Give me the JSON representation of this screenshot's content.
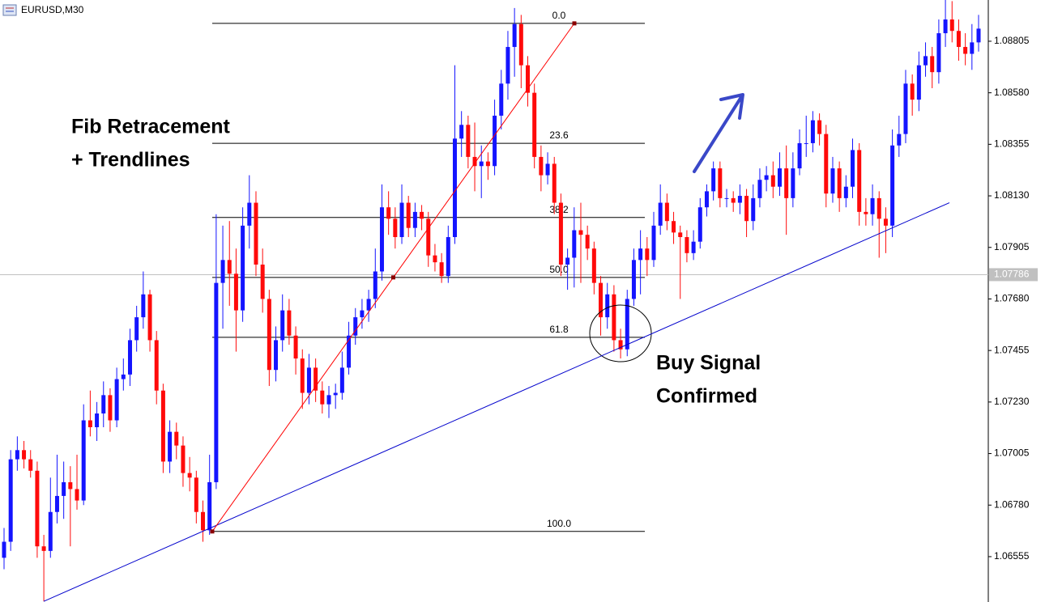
{
  "chart_data": {
    "type": "candlestick",
    "title": "EURUSD,M30",
    "up_color": "#1414ff",
    "down_color": "#ff0a0a",
    "ylim": [
      1.06357,
      1.08985
    ],
    "yticks": [
      1.08805,
      {
        "value": 1.0858,
        "label": "1.08580"
      },
      1.08355,
      {
        "value": 1.0813,
        "label": "1.08130"
      },
      1.07905,
      {
        "value": 1.0768,
        "label": "1.07680"
      },
      1.07455,
      {
        "value": 1.0723,
        "label": "1.07230"
      },
      1.07005,
      {
        "value": 1.0678,
        "label": "1.06780"
      },
      1.06555
    ],
    "current_price": 1.07786,
    "fib": {
      "high": 1.08883,
      "low": 1.06665,
      "color": "#ff0000",
      "levels": [
        {
          "value": 0,
          "label": "0.0"
        },
        23.6,
        38.2,
        {
          "value": 50,
          "label": "50.0"
        },
        61.8,
        {
          "value": 100,
          "label": "100.0"
        }
      ]
    },
    "trendline": {
      "start": 1.0636,
      "end": 1.081,
      "color": "#0000cc"
    },
    "annotations": [
      "Fib Retracement",
      "+ Trendlines",
      "Buy Signal",
      "Confirmed"
    ],
    "ohlc": [
      [
        1.0655,
        1.0668,
        1.065,
        1.0662
      ],
      [
        1.0662,
        1.0702,
        1.0658,
        1.0698
      ],
      [
        1.0698,
        1.0708,
        1.0693,
        1.0702
      ],
      [
        1.0702,
        1.0706,
        1.0694,
        1.0698
      ],
      [
        1.0698,
        1.0702,
        1.069,
        1.0693
      ],
      [
        1.0693,
        1.0697,
        1.0655,
        1.066
      ],
      [
        1.066,
        1.0665,
        1.0636,
        1.0658
      ],
      [
        1.0658,
        1.069,
        1.0655,
        1.0675
      ],
      [
        1.0675,
        1.07,
        1.067,
        1.0682
      ],
      [
        1.0682,
        1.0697,
        1.0672,
        1.0688
      ],
      [
        1.0688,
        1.0695,
        1.066,
        1.0685
      ],
      [
        1.0685,
        1.07,
        1.0676,
        1.068
      ],
      [
        1.068,
        1.0722,
        1.0678,
        1.0715
      ],
      [
        1.0715,
        1.0728,
        1.0708,
        1.0712
      ],
      [
        1.0712,
        1.0723,
        1.0706,
        1.0718
      ],
      [
        1.0718,
        1.0732,
        1.0712,
        1.0726
      ],
      [
        1.0726,
        1.0729,
        1.071,
        1.0715
      ],
      [
        1.0715,
        1.0738,
        1.0712,
        1.0733
      ],
      [
        1.0733,
        1.0742,
        1.0728,
        1.0735
      ],
      [
        1.0735,
        1.0755,
        1.073,
        1.075
      ],
      [
        1.075,
        1.0765,
        1.0745,
        1.076
      ],
      [
        1.076,
        1.078,
        1.0755,
        1.077
      ],
      [
        1.077,
        1.0772,
        1.0745,
        1.075
      ],
      [
        1.075,
        1.0754,
        1.0722,
        1.0728
      ],
      [
        1.0728,
        1.0731,
        1.0692,
        1.0697
      ],
      [
        1.0697,
        1.0715,
        1.0692,
        1.071
      ],
      [
        1.071,
        1.0714,
        1.0698,
        1.0704
      ],
      [
        1.0704,
        1.0708,
        1.0686,
        1.0692
      ],
      [
        1.0692,
        1.0699,
        1.0684,
        1.069
      ],
      [
        1.069,
        1.0693,
        1.067,
        1.0675
      ],
      [
        1.0675,
        1.068,
        1.0662,
        1.0667
      ],
      [
        1.0667,
        1.07,
        1.0665,
        1.0688
      ],
      [
        1.0688,
        1.0805,
        1.0685,
        1.0775
      ],
      [
        1.0775,
        1.08,
        1.0755,
        1.0785
      ],
      [
        1.0785,
        1.0802,
        1.0765,
        1.0779
      ],
      [
        1.0779,
        1.079,
        1.0745,
        1.0763
      ],
      [
        1.0763,
        1.0808,
        1.0758,
        1.08
      ],
      [
        1.08,
        1.0822,
        1.079,
        1.081
      ],
      [
        1.081,
        1.0815,
        1.0778,
        1.0783
      ],
      [
        1.0783,
        1.079,
        1.0762,
        1.0768
      ],
      [
        1.0768,
        1.0772,
        1.073,
        1.0737
      ],
      [
        1.0737,
        1.0756,
        1.0732,
        1.075
      ],
      [
        1.075,
        1.077,
        1.0745,
        1.0763
      ],
      [
        1.0763,
        1.0768,
        1.0748,
        1.0752
      ],
      [
        1.0752,
        1.0756,
        1.0735,
        1.0742
      ],
      [
        1.0742,
        1.0746,
        1.072,
        1.0727
      ],
      [
        1.0727,
        1.0744,
        1.0722,
        1.0738
      ],
      [
        1.0738,
        1.0742,
        1.0723,
        1.0728
      ],
      [
        1.0728,
        1.0732,
        1.0718,
        1.0722
      ],
      [
        1.0722,
        1.073,
        1.0716,
        1.0726
      ],
      [
        1.0726,
        1.0731,
        1.072,
        1.0727
      ],
      [
        1.0727,
        1.0745,
        1.0724,
        1.0738
      ],
      [
        1.0738,
        1.0758,
        1.0735,
        1.0752
      ],
      [
        1.0752,
        1.0764,
        1.0748,
        1.076
      ],
      [
        1.076,
        1.0768,
        1.0755,
        1.0763
      ],
      [
        1.0763,
        1.0772,
        1.0758,
        1.0768
      ],
      [
        1.0768,
        1.079,
        1.0764,
        1.078
      ],
      [
        1.078,
        1.0818,
        1.0776,
        1.0808
      ],
      [
        1.0808,
        1.0815,
        1.0796,
        1.0803
      ],
      [
        1.0803,
        1.0808,
        1.079,
        1.0795
      ],
      [
        1.0795,
        1.0818,
        1.0792,
        1.081
      ],
      [
        1.081,
        1.0813,
        1.0795,
        1.0799
      ],
      [
        1.0799,
        1.081,
        1.0795,
        1.0806
      ],
      [
        1.0806,
        1.0809,
        1.0798,
        1.0803
      ],
      [
        1.0803,
        1.0806,
        1.0782,
        1.0787
      ],
      [
        1.0787,
        1.0792,
        1.078,
        1.0784
      ],
      [
        1.0784,
        1.0788,
        1.0775,
        1.0778
      ],
      [
        1.0778,
        1.08,
        1.0775,
        1.0795
      ],
      [
        1.0795,
        1.087,
        1.0792,
        1.0838
      ],
      [
        1.0838,
        1.085,
        1.083,
        1.0844
      ],
      [
        1.0844,
        1.0848,
        1.0825,
        1.083
      ],
      [
        1.083,
        1.0845,
        1.0815,
        1.0826
      ],
      [
        1.0826,
        1.0835,
        1.0812,
        1.0828
      ],
      [
        1.0828,
        1.0832,
        1.082,
        1.0826
      ],
      [
        1.0826,
        1.0855,
        1.0822,
        1.0848
      ],
      [
        1.0848,
        1.0868,
        1.0842,
        1.0862
      ],
      [
        1.0862,
        1.0885,
        1.0855,
        1.0878
      ],
      [
        1.0878,
        1.0895,
        1.0865,
        1.0888
      ],
      [
        1.0888,
        1.0892,
        1.086,
        1.087
      ],
      [
        1.087,
        1.0874,
        1.0852,
        1.0858
      ],
      [
        1.0858,
        1.0862,
        1.0825,
        1.083
      ],
      [
        1.083,
        1.0835,
        1.0815,
        1.0822
      ],
      [
        1.0822,
        1.0832,
        1.0818,
        1.0827
      ],
      [
        1.0827,
        1.083,
        1.0805,
        1.081
      ],
      [
        1.081,
        1.0814,
        1.0778,
        1.0783
      ],
      [
        1.0783,
        1.079,
        1.0772,
        1.0786
      ],
      [
        1.0786,
        1.0808,
        1.0773,
        1.0798
      ],
      [
        1.0798,
        1.081,
        1.0775,
        1.0796
      ],
      [
        1.0796,
        1.08,
        1.0785,
        1.079
      ],
      [
        1.079,
        1.0793,
        1.077,
        1.0775
      ],
      [
        1.0775,
        1.0778,
        1.0752,
        1.076
      ],
      [
        1.076,
        1.0775,
        1.0755,
        1.077
      ],
      [
        1.077,
        1.0774,
        1.0745,
        1.075
      ],
      [
        1.075,
        1.0755,
        1.0742,
        1.0746
      ],
      [
        1.0746,
        1.0772,
        1.0743,
        1.0768
      ],
      [
        1.0768,
        1.079,
        1.0765,
        1.0785
      ],
      [
        1.0785,
        1.0798,
        1.077,
        1.079
      ],
      [
        1.079,
        1.0795,
        1.0778,
        1.0785
      ],
      [
        1.0785,
        1.0806,
        1.0782,
        1.08
      ],
      [
        1.08,
        1.0818,
        1.0796,
        1.081
      ],
      [
        1.081,
        1.0814,
        1.0798,
        1.0802
      ],
      [
        1.0802,
        1.0806,
        1.0792,
        1.0797
      ],
      [
        1.0797,
        1.08,
        1.0768,
        1.0795
      ],
      [
        1.0795,
        1.0798,
        1.0784,
        1.0788
      ],
      [
        1.0788,
        1.0798,
        1.0785,
        1.0793
      ],
      [
        1.0793,
        1.0812,
        1.079,
        1.0808
      ],
      [
        1.0808,
        1.0818,
        1.0804,
        1.0815
      ],
      [
        1.0815,
        1.0828,
        1.0811,
        1.0825
      ],
      [
        1.0825,
        1.0828,
        1.0808,
        1.0812
      ],
      [
        1.0812,
        1.0816,
        1.0808,
        1.0812
      ],
      [
        1.0812,
        1.0815,
        1.0806,
        1.081
      ],
      [
        1.081,
        1.0818,
        1.0805,
        1.0813
      ],
      [
        1.0813,
        1.0816,
        1.0795,
        1.0802
      ],
      [
        1.0802,
        1.0818,
        1.0798,
        1.0812
      ],
      [
        1.0812,
        1.0825,
        1.0808,
        1.082
      ],
      [
        1.082,
        1.0826,
        1.0815,
        1.0822
      ],
      [
        1.0822,
        1.0828,
        1.0812,
        1.0817
      ],
      [
        1.0817,
        1.0832,
        1.0813,
        1.0825
      ],
      [
        1.0825,
        1.0835,
        1.0796,
        1.0812
      ],
      [
        1.0812,
        1.0832,
        1.0808,
        1.0825
      ],
      [
        1.0825,
        1.0842,
        1.0822,
        1.0836
      ],
      [
        1.0836,
        1.0848,
        1.083,
        1.0836
      ],
      [
        1.0836,
        1.085,
        1.0832,
        1.0846
      ],
      [
        1.0846,
        1.0849,
        1.0835,
        1.084
      ],
      [
        1.084,
        1.0844,
        1.0808,
        1.0814
      ],
      [
        1.0814,
        1.083,
        1.081,
        1.0825
      ],
      [
        1.0825,
        1.0828,
        1.0806,
        1.0812
      ],
      [
        1.0812,
        1.0822,
        1.0808,
        1.0817
      ],
      [
        1.0817,
        1.0838,
        1.0812,
        1.0833
      ],
      [
        1.0833,
        1.0836,
        1.08,
        1.0806
      ],
      [
        1.0806,
        1.0812,
        1.08,
        1.0805
      ],
      [
        1.0805,
        1.0818,
        1.08,
        1.0812
      ],
      [
        1.0812,
        1.0815,
        1.0786,
        1.0803
      ],
      [
        1.0803,
        1.0808,
        1.0788,
        1.08
      ],
      [
        1.08,
        1.0842,
        1.0795,
        1.0835
      ],
      [
        1.0835,
        1.0848,
        1.083,
        1.084
      ],
      [
        1.084,
        1.0868,
        1.0836,
        1.0862
      ],
      [
        1.0862,
        1.0866,
        1.0848,
        1.0855
      ],
      [
        1.0855,
        1.0876,
        1.085,
        1.087
      ],
      [
        1.087,
        1.088,
        1.0865,
        1.0874
      ],
      [
        1.0874,
        1.0878,
        1.086,
        1.0867
      ],
      [
        1.0867,
        1.089,
        1.0862,
        1.0884
      ],
      [
        1.0884,
        1.09,
        1.0878,
        1.089
      ],
      [
        1.089,
        1.0898,
        1.088,
        1.0885
      ],
      [
        1.0885,
        1.089,
        1.0872,
        1.0878
      ],
      [
        1.0878,
        1.0884,
        1.087,
        1.0875
      ],
      [
        1.0875,
        1.0888,
        1.0868,
        1.088
      ],
      [
        1.088,
        1.0892,
        1.0876,
        1.0886
      ]
    ]
  }
}
